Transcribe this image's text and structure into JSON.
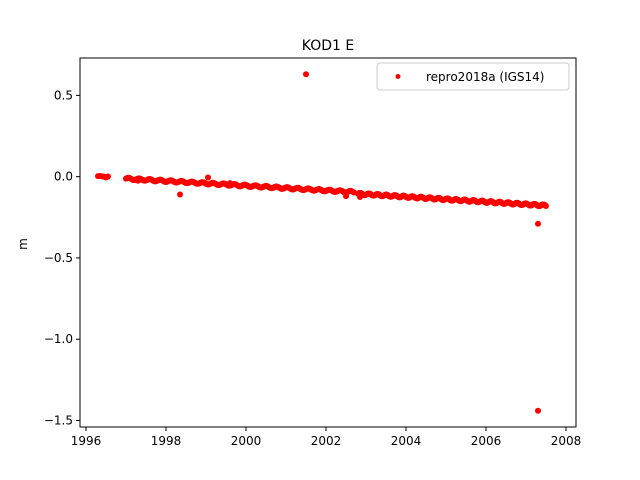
{
  "chart_data": {
    "type": "scatter",
    "title": "KOD1 E",
    "xlabel": "",
    "ylabel": "m",
    "xlim": [
      1995.85,
      2008.25
    ],
    "ylim": [
      -1.54,
      0.73
    ],
    "xticks": [
      1996,
      1998,
      2000,
      2002,
      2004,
      2006,
      2008
    ],
    "yticks": [
      0.5,
      0.0,
      -0.5,
      -1.0,
      -1.5
    ],
    "ytick_labels": [
      "0.5",
      "0.0",
      "−0.5",
      "−1.0",
      "−1.5"
    ],
    "grid": false,
    "legend_position": "top-right",
    "series": [
      {
        "name": "repro2018a (IGS14)",
        "color": "#ff0000",
        "marker": "dot",
        "trend_segments": [
          {
            "x_start": 1997.0,
            "x_end": 2002.7,
            "y_start": -0.012,
            "y_end": -0.095
          },
          {
            "x_start": 2002.8,
            "x_end": 2007.5,
            "y_start": -0.105,
            "y_end": -0.178
          }
        ],
        "points": [
          {
            "x": 1996.3,
            "y": 0.003
          },
          {
            "x": 1996.35,
            "y": 0.004
          },
          {
            "x": 1996.4,
            "y": 0.002
          },
          {
            "x": 1996.45,
            "y": 0.0
          },
          {
            "x": 1996.5,
            "y": -0.003
          },
          {
            "x": 1996.55,
            "y": 0.001
          },
          {
            "x": 1996.5,
            "y": -0.005
          },
          {
            "x": 1997.1,
            "y": -0.01
          },
          {
            "x": 1997.3,
            "y": -0.025
          },
          {
            "x": 1998.35,
            "y": -0.11
          },
          {
            "x": 1999.05,
            "y": -0.005
          },
          {
            "x": 1999.6,
            "y": -0.04
          },
          {
            "x": 2001.5,
            "y": 0.63
          },
          {
            "x": 2002.5,
            "y": -0.12
          },
          {
            "x": 2002.85,
            "y": -0.125
          },
          {
            "x": 2007.3,
            "y": -0.29
          },
          {
            "x": 2007.3,
            "y": -1.44
          }
        ]
      }
    ]
  }
}
